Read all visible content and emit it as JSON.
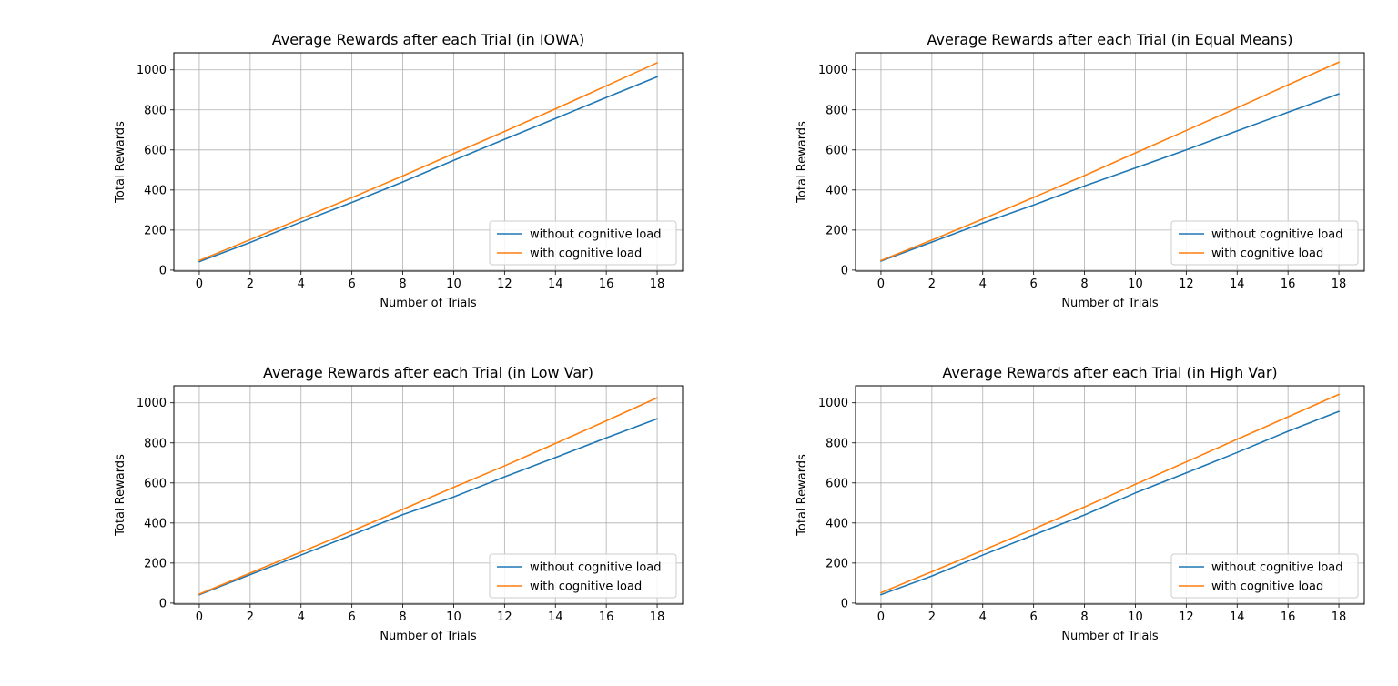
{
  "chart_data": [
    {
      "type": "line",
      "title": "Average Rewards after each Trial (in IOWA)",
      "xlabel": "Number of Trials",
      "ylabel": "Total Rewards",
      "xlim": [
        -1,
        19
      ],
      "ylim": [
        -5,
        1085
      ],
      "xticks": [
        "0",
        "2",
        "4",
        "6",
        "8",
        "10",
        "12",
        "14",
        "16",
        "18"
      ],
      "yticks": [
        "0",
        "200",
        "400",
        "600",
        "800",
        "1000"
      ],
      "grid": true,
      "legend": "lower right",
      "x": [
        0,
        2,
        4,
        6,
        8,
        10,
        12,
        14,
        16,
        18
      ],
      "series": [
        {
          "name": "without cognitive load",
          "color": "#1f77b4",
          "values": [
            42,
            138,
            240,
            338,
            440,
            548,
            653,
            757,
            862,
            965
          ]
        },
        {
          "name": "with cognitive load",
          "color": "#ff7f0e",
          "values": [
            48,
            152,
            257,
            362,
            470,
            582,
            692,
            805,
            920,
            1035
          ]
        }
      ]
    },
    {
      "type": "line",
      "title": "Average Rewards after each Trial (in Equal Means)",
      "xlabel": "Number of Trials",
      "ylabel": "Total Rewards",
      "xlim": [
        -1,
        19
      ],
      "ylim": [
        -5,
        1085
      ],
      "xticks": [
        "0",
        "2",
        "4",
        "6",
        "8",
        "10",
        "12",
        "14",
        "16",
        "18"
      ],
      "yticks": [
        "0",
        "200",
        "400",
        "600",
        "800",
        "1000"
      ],
      "grid": true,
      "legend": "lower right",
      "x": [
        0,
        2,
        4,
        6,
        8,
        10,
        12,
        14,
        16,
        18
      ],
      "series": [
        {
          "name": "without cognitive load",
          "color": "#1f77b4",
          "values": [
            45,
            140,
            235,
            325,
            420,
            510,
            600,
            695,
            788,
            880
          ]
        },
        {
          "name": "with cognitive load",
          "color": "#ff7f0e",
          "values": [
            48,
            150,
            255,
            363,
            472,
            585,
            697,
            810,
            925,
            1038
          ]
        }
      ]
    },
    {
      "type": "line",
      "title": "Average Rewards after each Trial (in Low Var)",
      "xlabel": "Number of Trials",
      "ylabel": "Total Rewards",
      "xlim": [
        -1,
        19
      ],
      "ylim": [
        -5,
        1085
      ],
      "xticks": [
        "0",
        "2",
        "4",
        "6",
        "8",
        "10",
        "12",
        "14",
        "16",
        "18"
      ],
      "yticks": [
        "0",
        "200",
        "400",
        "600",
        "800",
        "1000"
      ],
      "grid": true,
      "legend": "lower right",
      "x": [
        0,
        2,
        4,
        6,
        8,
        10,
        12,
        14,
        16,
        18
      ],
      "series": [
        {
          "name": "without cognitive load",
          "color": "#1f77b4",
          "values": [
            42,
            142,
            240,
            340,
            442,
            530,
            630,
            727,
            825,
            920
          ]
        },
        {
          "name": "with cognitive load",
          "color": "#ff7f0e",
          "values": [
            45,
            150,
            255,
            360,
            468,
            578,
            685,
            797,
            910,
            1025
          ]
        }
      ]
    },
    {
      "type": "line",
      "title": "Average Rewards after each Trial (in High Var)",
      "xlabel": "Number of Trials",
      "ylabel": "Total Rewards",
      "xlim": [
        -1,
        19
      ],
      "ylim": [
        -5,
        1085
      ],
      "xticks": [
        "0",
        "2",
        "4",
        "6",
        "8",
        "10",
        "12",
        "14",
        "16",
        "18"
      ],
      "yticks": [
        "0",
        "200",
        "400",
        "600",
        "800",
        "1000"
      ],
      "grid": true,
      "legend": "lower right",
      "x": [
        0,
        2,
        4,
        6,
        8,
        10,
        12,
        14,
        16,
        18
      ],
      "series": [
        {
          "name": "without cognitive load",
          "color": "#1f77b4",
          "values": [
            42,
            135,
            240,
            340,
            440,
            550,
            650,
            752,
            858,
            957
          ]
        },
        {
          "name": "with cognitive load",
          "color": "#ff7f0e",
          "values": [
            52,
            157,
            263,
            370,
            480,
            593,
            705,
            818,
            930,
            1042
          ]
        }
      ]
    }
  ]
}
